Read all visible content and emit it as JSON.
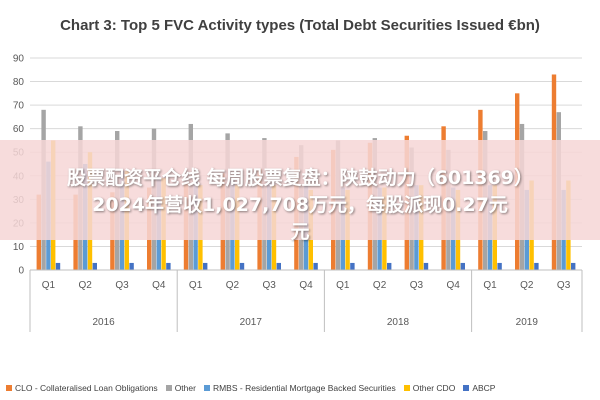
{
  "chart_data": {
    "type": "bar",
    "title": "Chart 3: Top 5 FVC Activity types (Total Debt Securities Issued €bn)",
    "ylim": [
      0,
      90
    ],
    "yticks": [
      0,
      10,
      20,
      30,
      40,
      50,
      60,
      70,
      80,
      90
    ],
    "categories": [
      "Q1",
      "Q2",
      "Q3",
      "Q4",
      "Q1",
      "Q2",
      "Q3",
      "Q4",
      "Q1",
      "Q2",
      "Q3",
      "Q4",
      "Q1",
      "Q2",
      "Q3"
    ],
    "groups": [
      {
        "label": "2016",
        "count": 4
      },
      {
        "label": "2017",
        "count": 4
      },
      {
        "label": "2018",
        "count": 4
      },
      {
        "label": "2019",
        "count": 3
      }
    ],
    "series": [
      {
        "name": "CLO - Collateralised Loan Obligations",
        "color": "#ED7D31",
        "values": [
          32,
          32,
          33,
          35,
          37,
          41,
          43,
          48,
          51,
          54,
          57,
          61,
          68,
          75,
          83
        ]
      },
      {
        "name": "Other",
        "color": "#A5A5A5",
        "values": [
          68,
          61,
          59,
          60,
          62,
          58,
          56,
          53,
          55,
          56,
          52,
          51,
          59,
          62,
          67
        ]
      },
      {
        "name": "RMBS - Residential Mortgage Backed Securities",
        "color": "#5B9BD5",
        "values": [
          46,
          45,
          42,
          40,
          39,
          38,
          37,
          36,
          35,
          35,
          36,
          35,
          36,
          34,
          34
        ]
      },
      {
        "name": "Other CDO",
        "color": "#FFC000",
        "values": [
          55,
          50,
          42,
          39,
          36,
          36,
          36,
          34,
          34,
          35,
          36,
          34,
          36,
          38,
          38
        ]
      },
      {
        "name": "ABCP",
        "color": "#4472C4",
        "values": [
          3,
          3,
          3,
          3,
          3,
          3,
          3,
          3,
          3,
          3,
          3,
          3,
          3,
          3,
          3
        ]
      }
    ],
    "grid": true,
    "legend_position": "bottom"
  },
  "overlay": {
    "line1": "股票配资平仓线 每周股票复盘：陕鼓动力（601369）",
    "line2": "2024年营收1,027,708万元，每股派现0.27元",
    "line3": "元"
  }
}
